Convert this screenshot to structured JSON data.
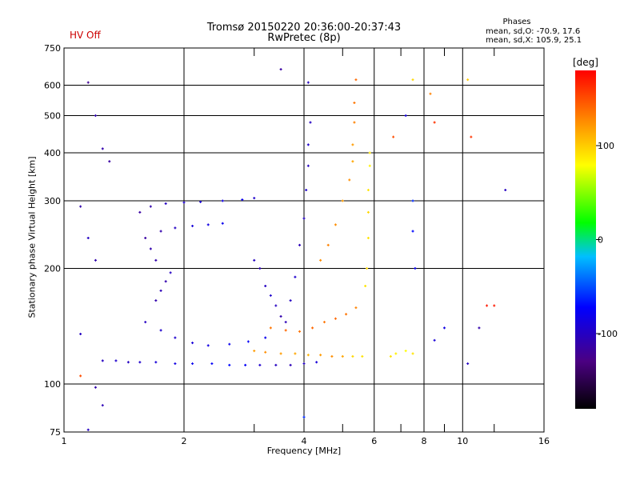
{
  "header": {
    "status": "HV Off",
    "title_line1": "Tromsø 20150220 20:36:00-20:37:43",
    "title_line2": "RwPretec (8p)",
    "phases_heading": "Phases",
    "phases_o": "mean, sd,O: -70.9, 17.6",
    "phases_x": "mean, sd,X: 105.9, 25.1"
  },
  "chart_data": {
    "type": "scatter",
    "title": "Tromsø 20150220 20:36:00-20:37:43",
    "subtitle": "RwPretec (8p)",
    "xlabel": "Frequency [MHz]",
    "ylabel": "Stationary phase Virtual Height [km]",
    "x_scale": "log",
    "y_scale": "log",
    "xlim": [
      1,
      16
    ],
    "ylim": [
      75,
      750
    ],
    "x_ticks": [
      1,
      2,
      4,
      6,
      8,
      10,
      16
    ],
    "x_minor_ticks": [
      3,
      5,
      7,
      9,
      12
    ],
    "y_ticks": [
      75,
      100,
      200,
      300,
      400,
      500,
      600,
      750
    ],
    "grid": true,
    "colorbar": {
      "label": "[deg]",
      "range": [
        -180,
        180
      ],
      "ticks": [
        100,
        0,
        -100
      ],
      "colors": [
        "#000000",
        "#4b0082",
        "#0000ff",
        "#00bfff",
        "#00ff00",
        "#ffff00",
        "#ff8c00",
        "#ff0000"
      ]
    },
    "series": [
      {
        "values": [
          [
            1.25,
            115,
            -100
          ],
          [
            1.35,
            115,
            -95
          ],
          [
            1.45,
            114,
            -100
          ],
          [
            1.55,
            114,
            -95
          ],
          [
            1.7,
            114,
            -90
          ],
          [
            1.9,
            113,
            -85
          ],
          [
            2.1,
            113,
            -80
          ],
          [
            2.35,
            113,
            -75
          ],
          [
            2.6,
            112,
            -70
          ],
          [
            2.85,
            112,
            -75
          ],
          [
            3.1,
            112,
            -95
          ],
          [
            3.4,
            112,
            -100
          ],
          [
            3.7,
            112,
            -105
          ],
          [
            4.0,
            113,
            -100
          ],
          [
            4.3,
            114,
            -90
          ],
          [
            1.6,
            145,
            -100
          ],
          [
            1.75,
            138,
            -95
          ],
          [
            1.9,
            132,
            -95
          ],
          [
            2.1,
            128,
            -90
          ],
          [
            2.3,
            126,
            -85
          ],
          [
            2.6,
            127,
            -80
          ],
          [
            2.9,
            129,
            -75
          ],
          [
            3.2,
            132,
            -80
          ],
          [
            1.7,
            165,
            -110
          ],
          [
            1.75,
            175,
            -105
          ],
          [
            1.8,
            185,
            -110
          ],
          [
            1.85,
            195,
            -100
          ],
          [
            1.7,
            210,
            -110
          ],
          [
            1.65,
            225,
            -110
          ],
          [
            1.6,
            240,
            -115
          ],
          [
            1.75,
            250,
            -110
          ],
          [
            1.9,
            255,
            -100
          ],
          [
            2.1,
            258,
            -90
          ],
          [
            2.3,
            260,
            -85
          ],
          [
            2.5,
            262,
            -80
          ],
          [
            1.55,
            280,
            -115
          ],
          [
            1.65,
            290,
            -110
          ],
          [
            1.8,
            295,
            -100
          ],
          [
            2.0,
            297,
            -95
          ],
          [
            2.2,
            298,
            -90
          ],
          [
            2.5,
            300,
            -85
          ],
          [
            2.8,
            302,
            -80
          ],
          [
            3.0,
            305,
            -95
          ],
          [
            3.0,
            210,
            -100
          ],
          [
            3.1,
            200,
            -105
          ],
          [
            3.2,
            180,
            -100
          ],
          [
            3.3,
            170,
            -95
          ],
          [
            3.4,
            160,
            -100
          ],
          [
            3.5,
            150,
            -110
          ],
          [
            3.6,
            145,
            -105
          ],
          [
            3.7,
            165,
            -100
          ],
          [
            3.8,
            190,
            -95
          ],
          [
            3.9,
            230,
            -105
          ],
          [
            4.0,
            270,
            -100
          ],
          [
            4.05,
            320,
            -95
          ],
          [
            4.1,
            370,
            -100
          ],
          [
            4.1,
            420,
            -95
          ],
          [
            4.15,
            480,
            -100
          ]
        ]
      },
      {
        "values": [
          [
            3.0,
            122,
            120
          ],
          [
            3.2,
            121,
            125
          ],
          [
            3.5,
            120,
            120
          ],
          [
            3.8,
            120,
            115
          ],
          [
            4.1,
            119,
            110
          ],
          [
            4.4,
            119,
            120
          ],
          [
            4.7,
            118,
            125
          ],
          [
            5.0,
            118,
            115
          ],
          [
            5.3,
            118,
            95
          ],
          [
            5.6,
            118,
            90
          ],
          [
            3.3,
            140,
            135
          ],
          [
            3.6,
            138,
            140
          ],
          [
            3.9,
            137,
            135
          ],
          [
            4.2,
            140,
            140
          ],
          [
            4.5,
            145,
            135
          ],
          [
            4.8,
            148,
            140
          ],
          [
            5.1,
            152,
            135
          ],
          [
            5.4,
            158,
            130
          ],
          [
            4.4,
            210,
            125
          ],
          [
            4.6,
            230,
            130
          ],
          [
            4.8,
            260,
            125
          ],
          [
            5.0,
            300,
            120
          ],
          [
            5.2,
            340,
            125
          ],
          [
            5.3,
            380,
            115
          ],
          [
            5.3,
            420,
            120
          ],
          [
            5.35,
            480,
            130
          ],
          [
            5.35,
            540,
            135
          ],
          [
            5.4,
            620,
            140
          ],
          [
            5.7,
            180,
            90
          ],
          [
            5.75,
            200,
            95
          ],
          [
            5.8,
            240,
            90
          ],
          [
            5.8,
            280,
            95
          ],
          [
            5.8,
            320,
            90
          ],
          [
            5.85,
            370,
            85
          ],
          [
            5.85,
            400,
            90
          ],
          [
            6.6,
            118,
            90
          ],
          [
            6.8,
            120,
            85
          ],
          [
            7.2,
            122,
            80
          ],
          [
            7.5,
            120,
            90
          ],
          [
            7.5,
            620,
            95
          ],
          [
            8.3,
            570,
            130
          ],
          [
            10.5,
            440,
            160
          ],
          [
            10.3,
            620,
            100
          ]
        ]
      },
      {
        "values": [
          [
            1.15,
            610,
            -120
          ],
          [
            1.2,
            500,
            -110
          ],
          [
            1.25,
            410,
            -110
          ],
          [
            1.3,
            380,
            -115
          ],
          [
            1.1,
            290,
            -110
          ],
          [
            1.15,
            240,
            -100
          ],
          [
            1.2,
            210,
            -110
          ],
          [
            1.1,
            135,
            -100
          ],
          [
            1.2,
            98,
            -110
          ],
          [
            1.25,
            88,
            -105
          ],
          [
            1.15,
            76,
            -100
          ],
          [
            1.1,
            105,
            150
          ],
          [
            4.0,
            82,
            -60
          ],
          [
            3.5,
            660,
            -115
          ],
          [
            4.1,
            610,
            -100
          ],
          [
            7.5,
            300,
            -60
          ],
          [
            7.5,
            250,
            -70
          ],
          [
            7.6,
            200,
            -80
          ],
          [
            8.5,
            130,
            -90
          ],
          [
            9.0,
            140,
            -85
          ],
          [
            10.3,
            113,
            -100
          ],
          [
            11.0,
            140,
            -110
          ],
          [
            12.8,
            320,
            -100
          ],
          [
            7.2,
            500,
            -90
          ],
          [
            6.7,
            440,
            150
          ],
          [
            8.5,
            480,
            160
          ],
          [
            11.5,
            160,
            170
          ],
          [
            12.0,
            160,
            170
          ]
        ]
      }
    ]
  }
}
